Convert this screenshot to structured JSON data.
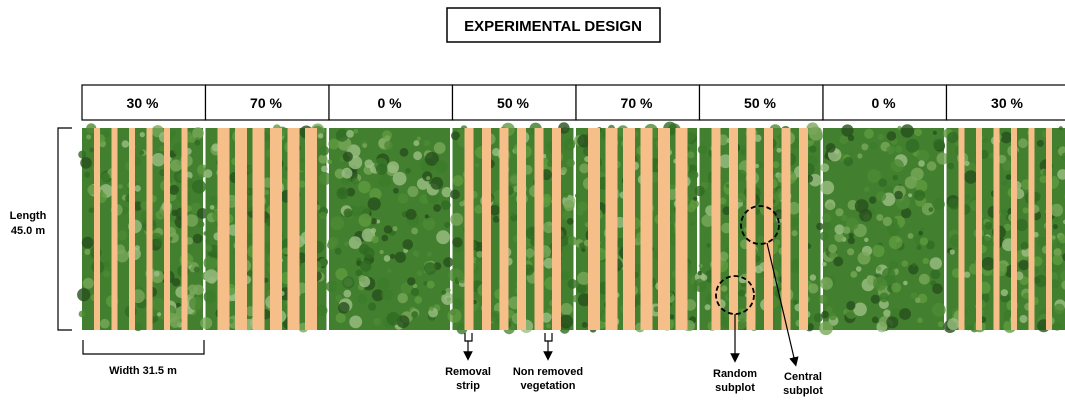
{
  "title": "EXPERIMENTAL DESIGN",
  "plots": [
    {
      "label": "30 %"
    },
    {
      "label": "70 %"
    },
    {
      "label": "0 %"
    },
    {
      "label": "50 %"
    },
    {
      "label": "70 %"
    },
    {
      "label": "50 %"
    },
    {
      "label": "0 %"
    },
    {
      "label": "30 %"
    }
  ],
  "dimensions": {
    "length": [
      "Length",
      "45.0 m"
    ],
    "width": "Width 31.5 m"
  },
  "annotations": {
    "removal_strip": [
      "Removal",
      "strip"
    ],
    "non_removed_vegetation": [
      "Non removed",
      "vegetation"
    ],
    "random_subplot": [
      "Random",
      "subplot"
    ],
    "central_subplot": [
      "Central",
      "subplot"
    ]
  }
}
